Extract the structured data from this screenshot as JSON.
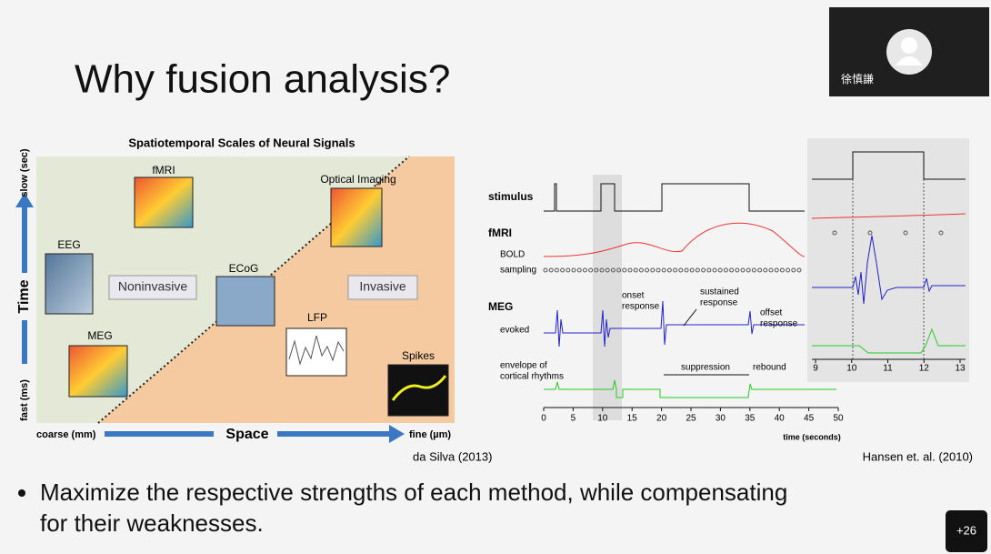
{
  "slide": {
    "title": "Why fusion analysis?",
    "left_figure": {
      "title": "Spatiotemporal Scales of Neural Signals",
      "y_axis": "Time",
      "y_top": "slow (sec)",
      "y_bottom": "fast (ms)",
      "x_axis": "Space",
      "x_left": "coarse (mm)",
      "x_right": "fine (µm)",
      "labels": {
        "fmri": "fMRI",
        "eeg": "EEG",
        "noninvasive": "Noninvasive",
        "ecog": "ECoG",
        "meg": "MEG",
        "optical": "Optical Imaging",
        "invasive": "Invasive",
        "lfp": "LFP",
        "spikes": "Spikes"
      },
      "credit": "da Silva (2013)"
    },
    "right_figure": {
      "rows": {
        "stimulus": "stimulus",
        "fmri": "fMRI",
        "bold": "BOLD",
        "sampling": "sampling",
        "meg": "MEG",
        "evoked": "evoked",
        "envelope": [
          "envelope of",
          "cortical rhythms"
        ]
      },
      "annotations": {
        "onset": [
          "onset",
          "response"
        ],
        "sustained": [
          "sustained",
          "response"
        ],
        "offset": [
          "offset",
          "response"
        ],
        "suppression": "suppression",
        "rebound": "rebound"
      },
      "x_ticks": [
        0,
        5,
        10,
        15,
        20,
        25,
        30,
        35,
        40,
        45,
        50
      ],
      "x_label": "time (seconds)",
      "inset_ticks": [
        9,
        10,
        11,
        12,
        13
      ],
      "credit": "Hansen et. al. (2010)"
    },
    "bullet": [
      "Maximize the respective strengths of each method, while compensating",
      "for their weaknesses."
    ]
  },
  "participant": {
    "name": "徐慎謙"
  },
  "overflow_count": "+26"
}
